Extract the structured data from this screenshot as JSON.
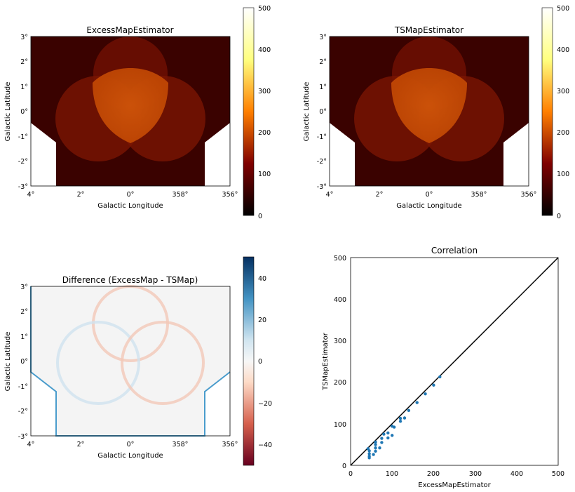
{
  "panels": {
    "excess": {
      "title": "ExcessMapEstimator",
      "xlabel": "Galactic Longitude",
      "ylabel": "Galactic Latitude",
      "xticks": [
        "4°",
        "2°",
        "0°",
        "358°",
        "356°"
      ],
      "yticks": [
        "3°",
        "2°",
        "1°",
        "0°",
        "-1°",
        "-2°",
        "-3°"
      ],
      "colorbar_ticks": [
        "500",
        "400",
        "300",
        "200",
        "100",
        "0"
      ]
    },
    "ts": {
      "title": "TSMapEstimator",
      "xlabel": "Galactic Longitude",
      "ylabel": "Galactic Latitude",
      "xticks": [
        "4°",
        "2°",
        "0°",
        "358°",
        "356°"
      ],
      "yticks": [
        "3°",
        "2°",
        "1°",
        "0°",
        "-1°",
        "-2°",
        "-3°"
      ],
      "colorbar_ticks": [
        "500",
        "400",
        "300",
        "200",
        "100",
        "0"
      ]
    },
    "diff": {
      "title": "Difference (ExcessMap - TSMap)",
      "xlabel": "Galactic Longitude",
      "ylabel": "Galactic Latitude",
      "xticks": [
        "4°",
        "2°",
        "0°",
        "358°",
        "356°"
      ],
      "yticks": [
        "3°",
        "2°",
        "1°",
        "0°",
        "-1°",
        "-2°",
        "-3°"
      ],
      "colorbar_ticks": [
        "40",
        "20",
        "0",
        "−20",
        "−40"
      ]
    },
    "corr": {
      "title": "Correlation",
      "xlabel": "ExcessMapEstimator",
      "ylabel": "TSMapEstimator",
      "xticks": [
        "0",
        "100",
        "200",
        "300",
        "400",
        "500"
      ],
      "yticks": [
        "500",
        "400",
        "300",
        "200",
        "100",
        "0"
      ]
    }
  },
  "chart_data": [
    {
      "type": "heatmap",
      "title": "ExcessMapEstimator",
      "xlabel": "Galactic Longitude",
      "ylabel": "Galactic Latitude",
      "xlim": [
        4,
        -4
      ],
      "ylim": [
        -3,
        3
      ],
      "colormap": "afmhot",
      "clim": [
        0,
        500
      ],
      "background_value": 40,
      "circles": [
        {
          "center": [
            0,
            1.3
          ],
          "radius": 1.5,
          "value": 60
        },
        {
          "center": [
            1.3,
            -0.6
          ],
          "radius": 1.5,
          "value": 60
        },
        {
          "center": [
            -1.3,
            -0.6
          ],
          "radius": 1.5,
          "value": 60
        }
      ],
      "colorbar_ticks": [
        0,
        100,
        200,
        300,
        400,
        500
      ]
    },
    {
      "type": "heatmap",
      "title": "TSMapEstimator",
      "xlabel": "Galactic Longitude",
      "ylabel": "Galactic Latitude",
      "xlim": [
        4,
        -4
      ],
      "ylim": [
        -3,
        3
      ],
      "colormap": "afmhot",
      "clim": [
        0,
        500
      ],
      "background_value": 40,
      "circles": [
        {
          "center": [
            0,
            1.3
          ],
          "radius": 1.5,
          "value": 60
        },
        {
          "center": [
            1.3,
            -0.6
          ],
          "radius": 1.5,
          "value": 60
        },
        {
          "center": [
            -1.3,
            -0.6
          ],
          "radius": 1.5,
          "value": 60
        }
      ],
      "colorbar_ticks": [
        0,
        100,
        200,
        300,
        400,
        500
      ]
    },
    {
      "type": "heatmap",
      "title": "Difference (ExcessMap - TSMap)",
      "xlabel": "Galactic Longitude",
      "ylabel": "Galactic Latitude",
      "xlim": [
        4,
        -4
      ],
      "ylim": [
        -3,
        3
      ],
      "colormap": "RdBu",
      "clim": [
        -50,
        50
      ],
      "background_value": 0,
      "ring_edge_outer": 5,
      "ring_edge_inner": -5,
      "border_value": 40,
      "colorbar_ticks": [
        -40,
        -20,
        0,
        20,
        40
      ]
    },
    {
      "type": "scatter",
      "title": "Correlation",
      "xlabel": "ExcessMapEstimator",
      "ylabel": "TSMapEstimator",
      "xlim": [
        0,
        500
      ],
      "ylim": [
        0,
        500
      ],
      "identity_line": [
        [
          0,
          0
        ],
        [
          500,
          500
        ]
      ],
      "x": [
        42,
        60,
        80,
        100,
        120,
        140,
        160,
        180,
        200,
        215,
        45,
        60,
        75,
        90,
        105,
        120,
        130,
        45,
        60,
        75,
        90,
        100,
        45,
        60,
        70,
        45,
        55
      ],
      "y": [
        40,
        56,
        75,
        94,
        113,
        132,
        151,
        172,
        193,
        213,
        35,
        50,
        65,
        78,
        92,
        106,
        114,
        28,
        42,
        55,
        66,
        72,
        22,
        34,
        42,
        18,
        26
      ],
      "color": "#1f77b4"
    }
  ]
}
